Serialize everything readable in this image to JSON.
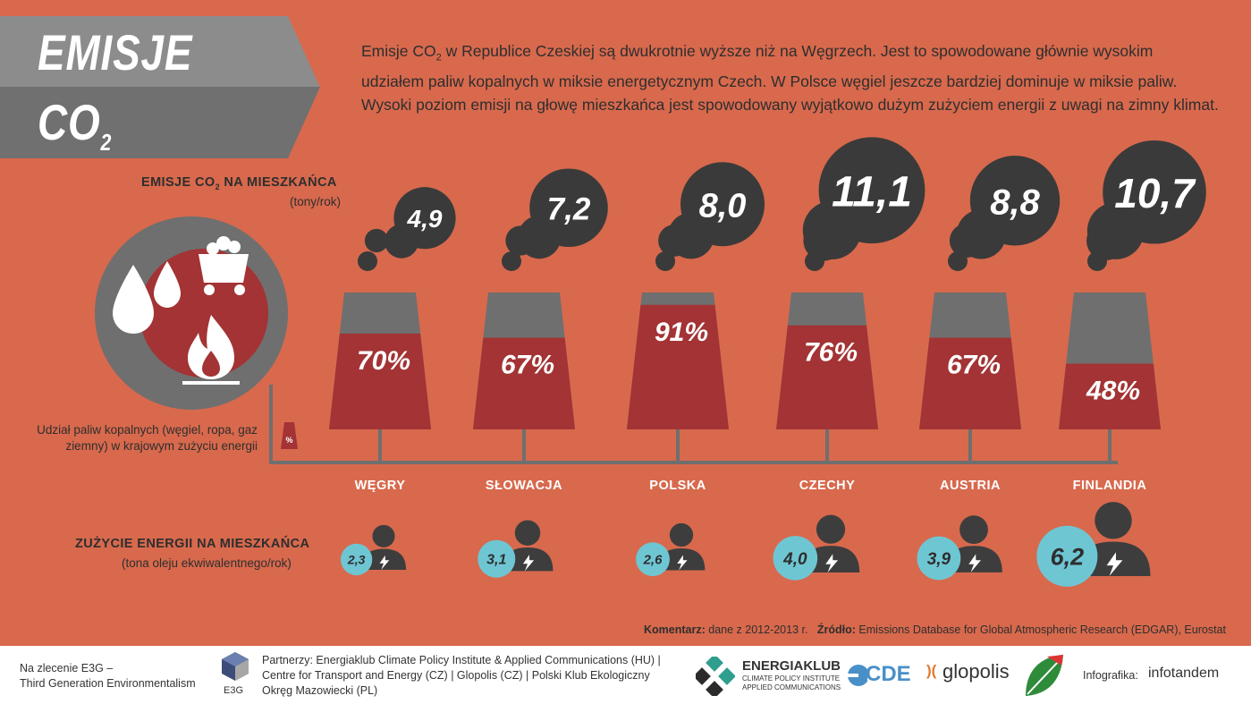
{
  "header": {
    "title_line1": "EMISJE",
    "title_line2": "CO",
    "title_line2_sub": "2",
    "intro_part1": "Emisje CO",
    "intro_sub": "2",
    "intro_part2": " w Republice Czeskiej są dwukrotnie wyższe niż na Węgrzech. Jest to spowodowane głównie wysokim udziałem paliw kopalnych w miksie energetycznym Czech. W Polsce węgiel jeszcze bardziej dominuje w miksie paliw. Wysoki poziom emisji na głowę mieszkańca jest spowodowany wyjątkowo dużym zużyciem energii z uwagi na zimny klimat."
  },
  "legend": {
    "emissions_heading_a": "EMISJE CO",
    "emissions_heading_sub": "2",
    "emissions_heading_b": " NA MIESZKAŃCA",
    "emissions_unit": "(tony/rok)",
    "fossil_note": "Udział paliw kopalnych (węgiel, ropa, gaz ziemny) w krajowym zużyciu energii",
    "fossil_icon_symbol": "%",
    "energy_heading": "ZUŻYCIE ENERGII NA MIESZKAŃCA",
    "energy_unit": "(tona oleju ekwiwalentnego/rok)"
  },
  "chart_data": {
    "type": "table",
    "countries": [
      "WĘGRY",
      "SŁOWACJA",
      "POLSKA",
      "CZECHY",
      "AUSTRIA",
      "FINLANDIA"
    ],
    "emissions_per_capita": [
      "4,9",
      "7,2",
      "8,0",
      "11,1",
      "8,8",
      "10,7"
    ],
    "fossil_share": [
      "70%",
      "67%",
      "91%",
      "76%",
      "67%",
      "48%"
    ],
    "fossil_share_values": [
      70,
      67,
      91,
      76,
      67,
      48
    ],
    "energy_per_capita": [
      "2,3",
      "3,1",
      "2,6",
      "4,0",
      "3,9",
      "6,2"
    ]
  },
  "footnote": {
    "comment_label": "Komentarz:",
    "comment_text": " dane z 2012-2013 r.",
    "source_label": "Źródło:",
    "source_text": " Emissions Database for Global Atmospheric Research (EDGAR), Eurostat"
  },
  "footer": {
    "commission_line1": "Na zlecenie E3G –",
    "commission_line2": "Third Generation Environmentalism",
    "e3g_logo": "E3G",
    "partners_line1": "Partnerzy: Energiaklub Climate Policy Institute & Applied Communications (HU) |",
    "partners_line2": "Centre for Transport and Energy (CZ) | Glopolis (CZ) | Polski Klub Ekologiczny",
    "partners_line3": "Okręg Mazowiecki (PL)",
    "energiaklub_logo": "ENERGIAKLUB",
    "energiaklub_sub1": "CLIMATE POLICY INSTITUTE",
    "energiaklub_sub2": "APPLIED COMMUNICATIONS",
    "cde_logo": "CDE",
    "glopolis_logo": "glopolis",
    "pke_logo": "POLSKI KLUB EKOLOGICZNY",
    "infographic_label": "Infografika:",
    "infotandem_logo": "infotandem"
  },
  "colors": {
    "background": "#d8694d",
    "chimney_red": "#a33334",
    "chimney_gray": "#6f6f6f",
    "smoke": "#3a3a3a",
    "energy_circle": "#6ec6d3",
    "person": "#3d3d3d"
  }
}
